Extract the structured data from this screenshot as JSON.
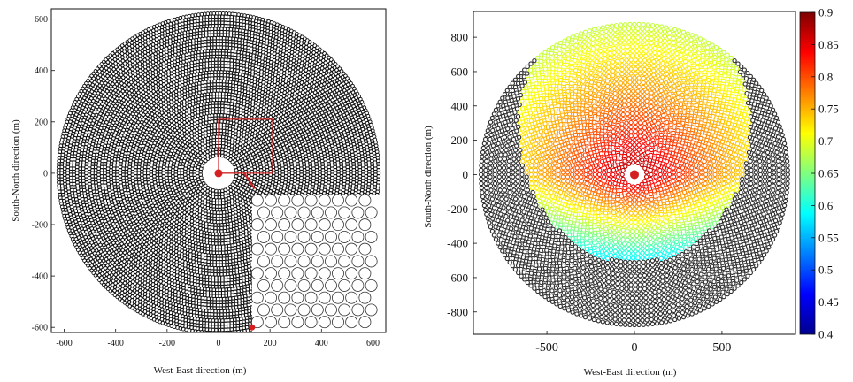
{
  "chart_data": [
    {
      "type": "scatter",
      "description_kind": "heliostat field layout",
      "xlabel": "West-East direction (m)",
      "ylabel": "South-North direction (m)",
      "xlim": [
        -650,
        650
      ],
      "ylim": [
        -620,
        640
      ],
      "xticks": [
        -600,
        -400,
        -200,
        0,
        200,
        400,
        600
      ],
      "yticks": [
        -600,
        -400,
        -200,
        0,
        200,
        400,
        600
      ],
      "field": {
        "inner_radius": 70,
        "outer_radius": 630,
        "spacing": 12
      },
      "tower": [
        0,
        0
      ],
      "zoom_box": {
        "x0": 0,
        "y0": 0,
        "x1": 210,
        "y1": 210
      },
      "inset_extent": {
        "x0": 130,
        "x1": 625,
        "y0": -625,
        "y1": -85
      },
      "marked_point": [
        130,
        -600
      ],
      "colors": {
        "heliostat": "#111111",
        "tower": "#d42020",
        "zoom": "#cc2222"
      }
    },
    {
      "type": "scatter",
      "description_kind": "heliostat optical efficiency map",
      "xlabel": "West-East direction (m)",
      "ylabel": "South-North direction (m)",
      "xlim": [
        -920,
        920
      ],
      "ylim": [
        -930,
        950
      ],
      "xticks": [
        -500,
        0,
        500
      ],
      "yticks": [
        -800,
        -600,
        -400,
        -200,
        0,
        200,
        400,
        600,
        800
      ],
      "field": {
        "inner_radius": 70,
        "outer_radius": 890,
        "spacing": 26
      },
      "efficiency_region": {
        "cx": 0,
        "cy": 270,
        "rx": 660,
        "ry": 780
      },
      "colorbar": {
        "min": 0.4,
        "max": 0.9,
        "ticks": [
          0.4,
          0.45,
          0.5,
          0.55,
          0.6,
          0.65,
          0.7,
          0.75,
          0.8,
          0.85,
          0.9
        ]
      },
      "colors": {
        "unused": "#2b2b2b",
        "tower": "#d42020"
      }
    }
  ]
}
